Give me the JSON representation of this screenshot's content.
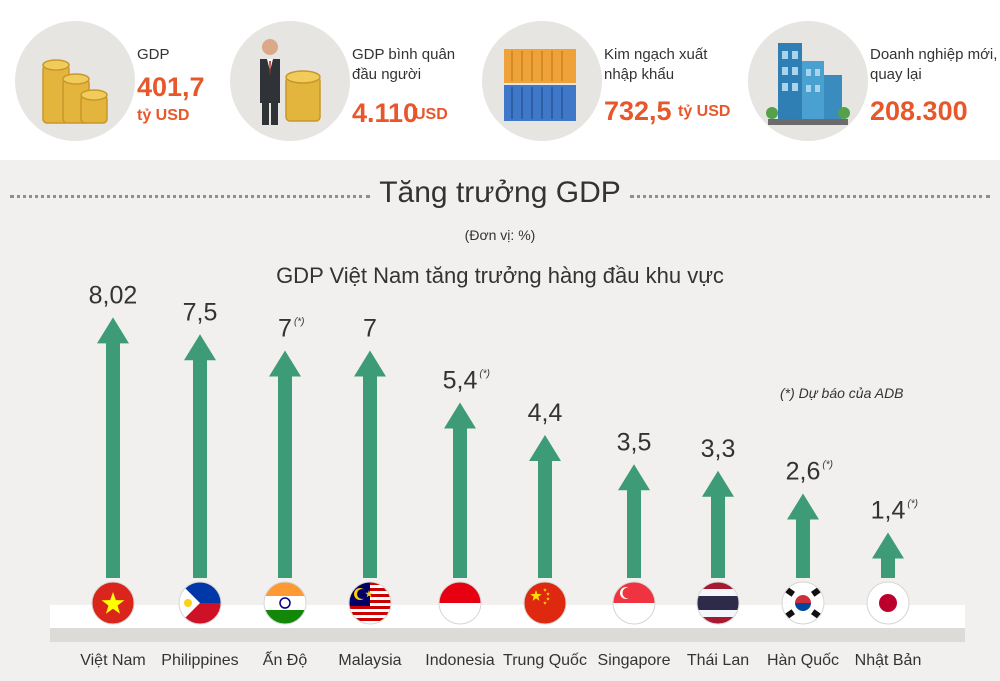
{
  "stats": [
    {
      "label": "GDP",
      "value": "401,7",
      "unit": "tỷ USD",
      "icon": "coins-icon"
    },
    {
      "label": "GDP bình quân đầu người",
      "value": "4.110",
      "unit": "USD",
      "icon": "businessman-coins-icon"
    },
    {
      "label": "Kim ngạch xuất nhập khẩu",
      "value": "732,5",
      "unit": "tỷ USD",
      "icon": "shipping-container-icon"
    },
    {
      "label": "Doanh nghiệp mới, quay lại",
      "value": "208.300",
      "unit": "",
      "icon": "office-buildings-icon"
    }
  ],
  "section": {
    "title": "Tăng trưởng GDP",
    "unit_note": "(Đơn vị: %)"
  },
  "footnote": "(*) Dự báo của ADB",
  "colors": {
    "accent": "#e8572a",
    "arrow": "#3d9b78",
    "highlight_label": "#e8572a"
  },
  "chart_data": {
    "type": "bar",
    "title": "GDP Việt Nam tăng trưởng hàng đầu khu vực",
    "categories": [
      "Việt Nam",
      "Philippines",
      "Ấn Độ",
      "Malaysia",
      "Indonesia",
      "Trung Quốc",
      "Singapore",
      "Thái Lan",
      "Hàn Quốc",
      "Nhật Bản"
    ],
    "values": [
      8.02,
      7.5,
      7,
      7,
      5.4,
      4.4,
      3.5,
      3.3,
      2.6,
      1.4
    ],
    "value_labels": [
      "8,02",
      "7,5",
      "7",
      "7",
      "5,4",
      "4,4",
      "3,5",
      "3,3",
      "2,6",
      "1,4"
    ],
    "forecast_flags": [
      false,
      false,
      true,
      false,
      true,
      false,
      false,
      false,
      true,
      true
    ],
    "forecast_mark": "(*)",
    "flags": [
      "vietnam-flag-icon",
      "philippines-flag-icon",
      "india-flag-icon",
      "malaysia-flag-icon",
      "indonesia-flag-icon",
      "china-flag-icon",
      "singapore-flag-icon",
      "thailand-flag-icon",
      "south-korea-flag-icon",
      "japan-flag-icon"
    ],
    "highlight_index": 0,
    "xlabel": "",
    "ylabel": "",
    "ylim": [
      0,
      8.02
    ]
  }
}
